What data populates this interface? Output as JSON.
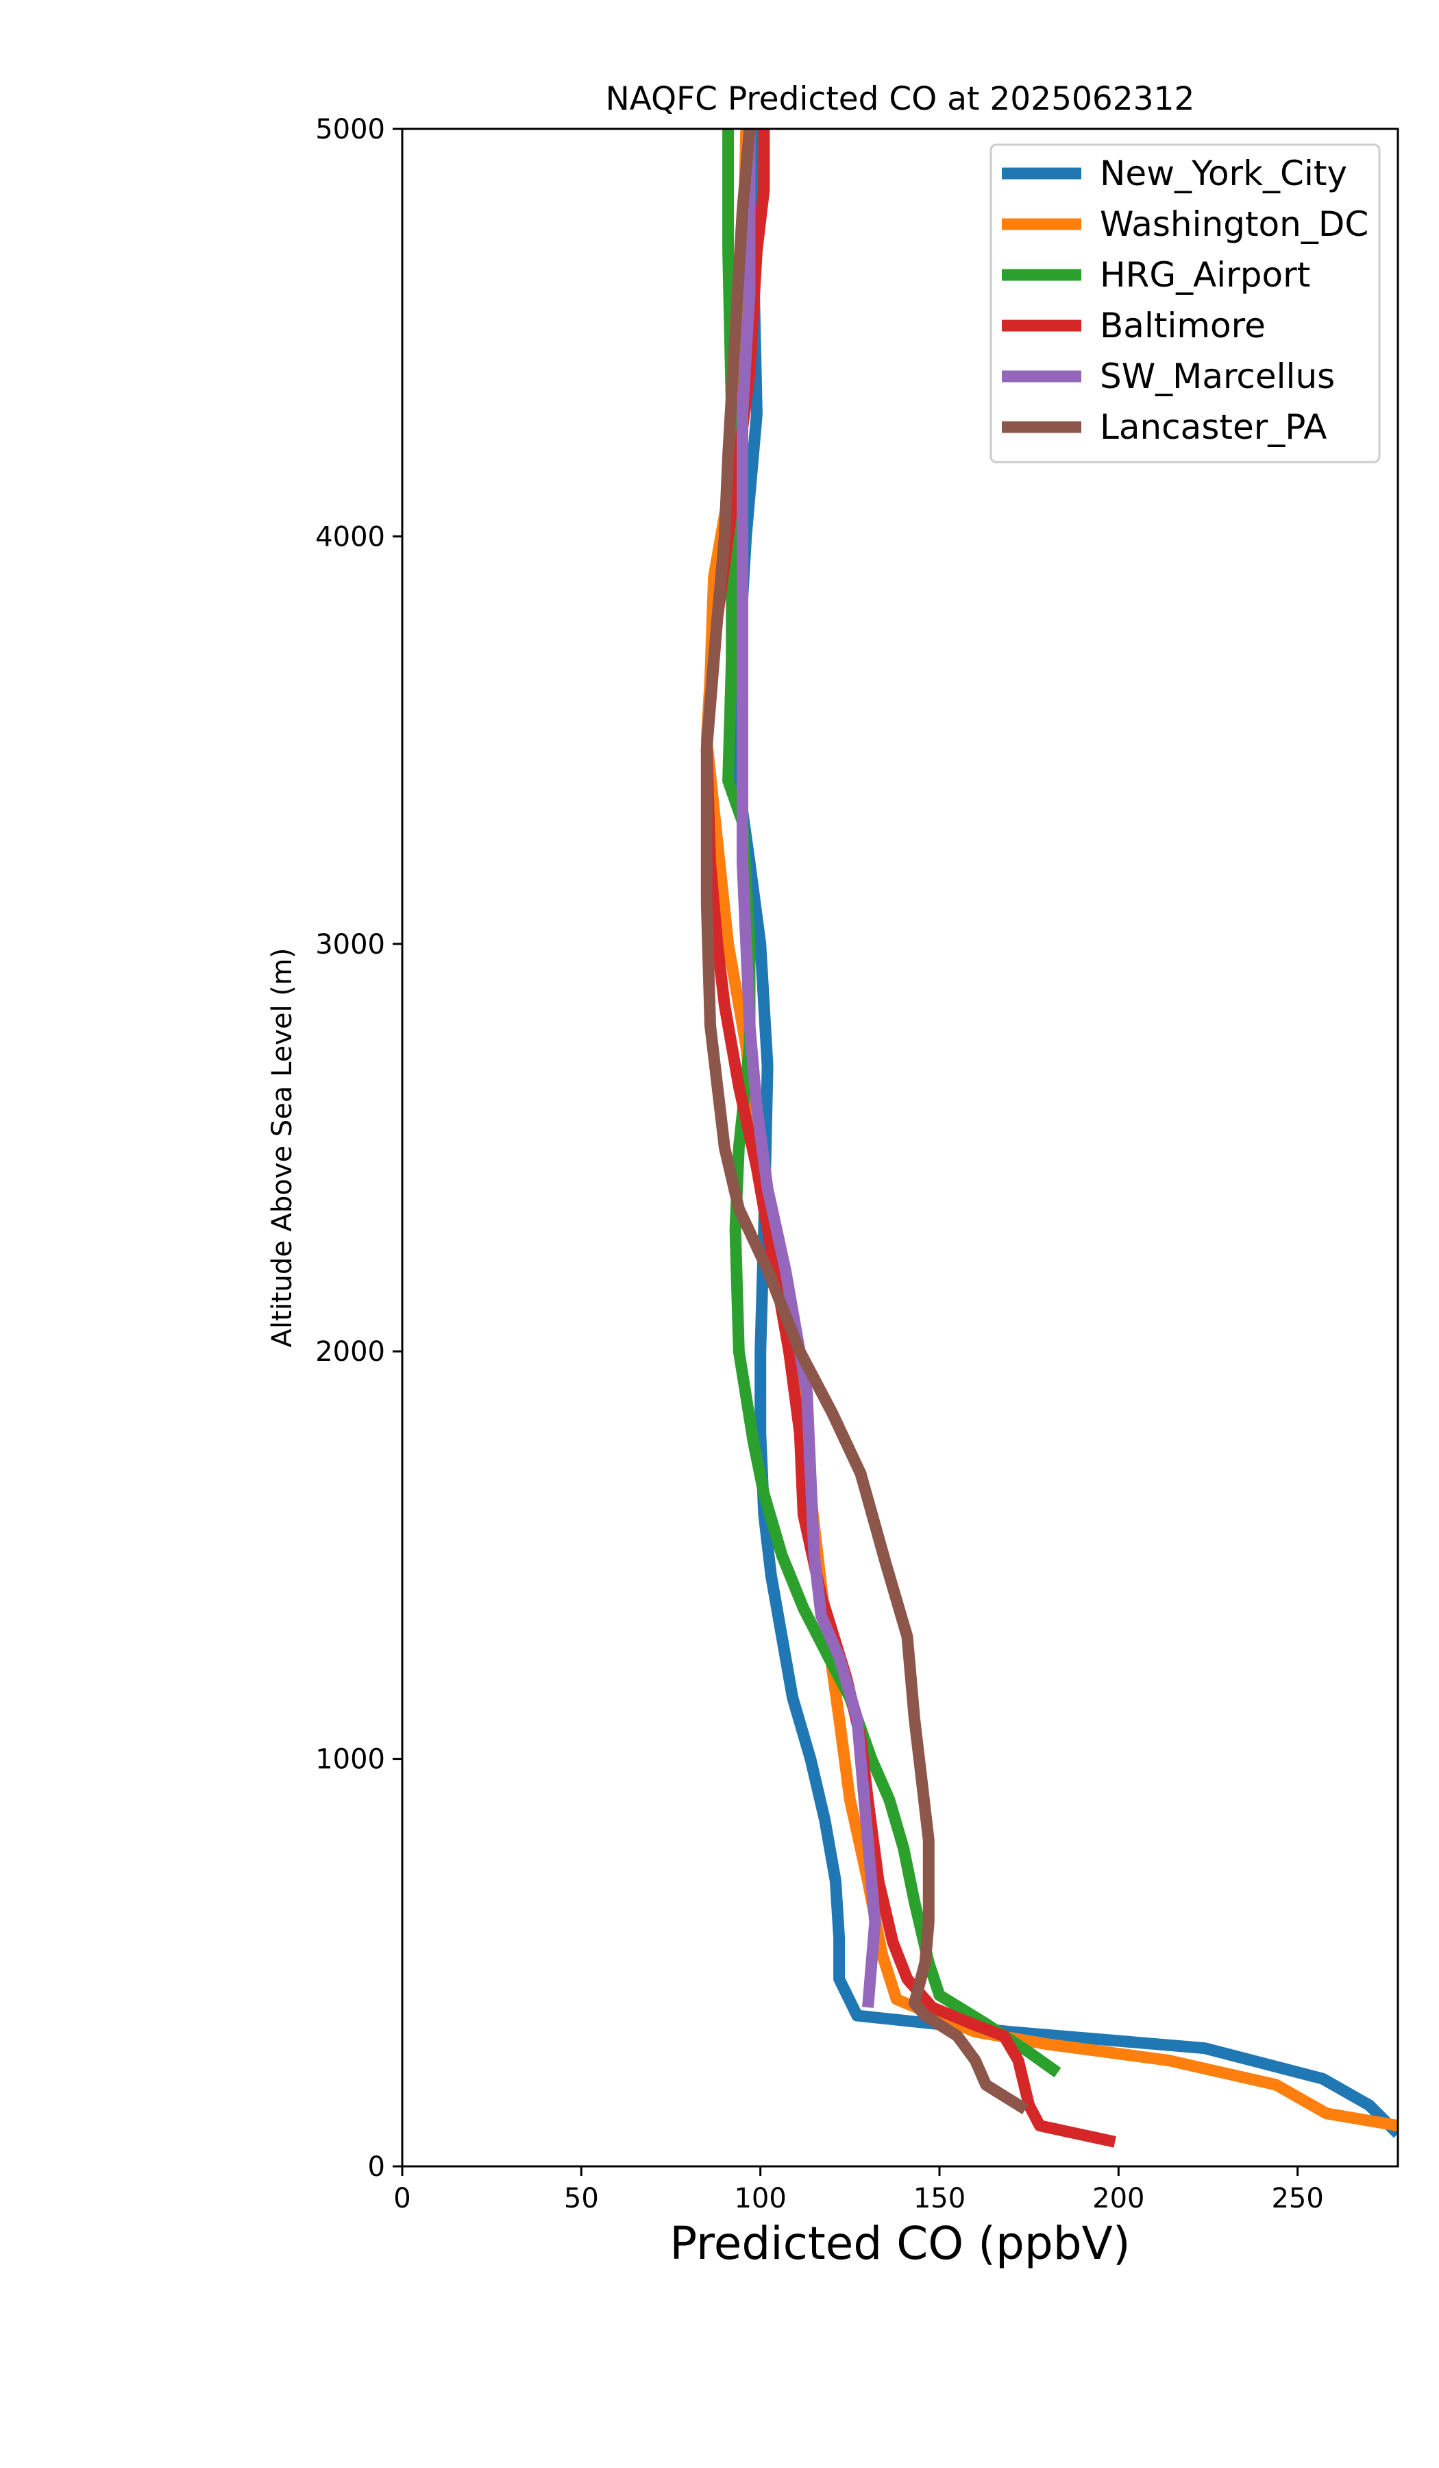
{
  "chart_data": {
    "type": "line",
    "title": "NAQFC Predicted CO at 2025062312",
    "xlabel": "Predicted CO (ppbV)",
    "ylabel": "Altitude Above Sea Level (m)",
    "xlim": [
      0,
      278
    ],
    "ylim": [
      0,
      5000
    ],
    "x_ticks": [
      "0",
      "50",
      "100",
      "150",
      "200",
      "250"
    ],
    "y_ticks": [
      "0",
      "1000",
      "2000",
      "3000",
      "4000",
      "5000"
    ],
    "grid": false,
    "legend_position": "top-right",
    "series": [
      {
        "name": "New_York_City",
        "color": "#1f77b4",
        "points": [
          [
            278,
            80
          ],
          [
            270,
            150
          ],
          [
            257,
            215
          ],
          [
            224,
            290
          ],
          [
            170,
            330
          ],
          [
            127,
            370
          ],
          [
            122,
            460
          ],
          [
            122,
            560
          ],
          [
            121,
            700
          ],
          [
            118,
            850
          ],
          [
            114,
            1000
          ],
          [
            109,
            1150
          ],
          [
            106,
            1300
          ],
          [
            103,
            1450
          ],
          [
            101,
            1600
          ],
          [
            100,
            1800
          ],
          [
            100,
            2000
          ],
          [
            101,
            2300
          ],
          [
            102,
            2700
          ],
          [
            100,
            3000
          ],
          [
            97,
            3200
          ],
          [
            93,
            3450
          ],
          [
            94,
            3700
          ],
          [
            96,
            4000
          ],
          [
            99,
            4300
          ],
          [
            98,
            4700
          ],
          [
            98,
            5000
          ]
        ]
      },
      {
        "name": "Washington_DC",
        "color": "#ff7f0e",
        "points": [
          [
            278,
            100
          ],
          [
            258,
            130
          ],
          [
            244,
            200
          ],
          [
            214,
            260
          ],
          [
            180,
            300
          ],
          [
            160,
            330
          ],
          [
            138,
            410
          ],
          [
            134,
            520
          ],
          [
            130,
            700
          ],
          [
            125,
            900
          ],
          [
            122,
            1100
          ],
          [
            118,
            1350
          ],
          [
            114,
            1650
          ],
          [
            110,
            1900
          ],
          [
            105,
            2150
          ],
          [
            100,
            2450
          ],
          [
            96,
            2750
          ],
          [
            91,
            3000
          ],
          [
            88,
            3250
          ],
          [
            85,
            3500
          ],
          [
            86,
            3650
          ],
          [
            87,
            3900
          ],
          [
            91,
            4100
          ],
          [
            93,
            4300
          ],
          [
            95,
            4600
          ],
          [
            96,
            5000
          ]
        ]
      },
      {
        "name": "HRG_Airport",
        "color": "#2ca02c",
        "points": [
          [
            183,
            230
          ],
          [
            175,
            280
          ],
          [
            163,
            350
          ],
          [
            150,
            420
          ],
          [
            147,
            500
          ],
          [
            143,
            650
          ],
          [
            140,
            780
          ],
          [
            136,
            900
          ],
          [
            131,
            1000
          ],
          [
            125,
            1150
          ],
          [
            119,
            1250
          ],
          [
            112,
            1370
          ],
          [
            106,
            1500
          ],
          [
            101,
            1650
          ],
          [
            98,
            1780
          ],
          [
            94,
            2000
          ],
          [
            93,
            2300
          ],
          [
            94,
            2500
          ],
          [
            97,
            2750
          ],
          [
            97,
            3000
          ],
          [
            95,
            3300
          ],
          [
            91,
            3400
          ],
          [
            92,
            3700
          ],
          [
            92,
            4000
          ],
          [
            92,
            4300
          ],
          [
            91,
            4700
          ],
          [
            91,
            5000
          ]
        ]
      },
      {
        "name": "Baltimore",
        "color": "#d62728",
        "points": [
          [
            199,
            60
          ],
          [
            178,
            100
          ],
          [
            175,
            150
          ],
          [
            172,
            260
          ],
          [
            168,
            320
          ],
          [
            159,
            350
          ],
          [
            148,
            390
          ],
          [
            141,
            460
          ],
          [
            137,
            550
          ],
          [
            133,
            700
          ],
          [
            130,
            900
          ],
          [
            128,
            1050
          ],
          [
            124,
            1200
          ],
          [
            117,
            1400
          ],
          [
            112,
            1600
          ],
          [
            111,
            1800
          ],
          [
            108,
            2000
          ],
          [
            104,
            2200
          ],
          [
            99,
            2450
          ],
          [
            94,
            2650
          ],
          [
            90,
            2850
          ],
          [
            88,
            3000
          ],
          [
            86,
            3200
          ],
          [
            85,
            3480
          ],
          [
            88,
            3800
          ],
          [
            91,
            4000
          ],
          [
            94,
            4200
          ],
          [
            97,
            4400
          ],
          [
            99,
            4700
          ],
          [
            101,
            4850
          ],
          [
            101,
            5000
          ]
        ]
      },
      {
        "name": "SW_Marcellus",
        "color": "#9467bd",
        "points": [
          [
            130,
            390
          ],
          [
            132,
            600
          ],
          [
            130,
            800
          ],
          [
            128,
            1000
          ],
          [
            127,
            1100
          ],
          [
            122,
            1250
          ],
          [
            117,
            1350
          ],
          [
            115,
            1500
          ],
          [
            114,
            1700
          ],
          [
            113,
            1900
          ],
          [
            110,
            2050
          ],
          [
            107,
            2200
          ],
          [
            102,
            2400
          ],
          [
            99,
            2600
          ],
          [
            97,
            2800
          ],
          [
            96,
            3000
          ],
          [
            95,
            3200
          ],
          [
            95,
            3500
          ],
          [
            95,
            3800
          ],
          [
            95,
            4050
          ],
          [
            95,
            4300
          ],
          [
            97,
            4600
          ],
          [
            97,
            5000
          ]
        ]
      },
      {
        "name": "Lancaster_PA",
        "color": "#8c564b",
        "points": [
          [
            174,
            140
          ],
          [
            163,
            200
          ],
          [
            160,
            260
          ],
          [
            155,
            320
          ],
          [
            146,
            370
          ],
          [
            143,
            400
          ],
          [
            146,
            500
          ],
          [
            147,
            600
          ],
          [
            147,
            800
          ],
          [
            145,
            950
          ],
          [
            143,
            1100
          ],
          [
            141,
            1300
          ],
          [
            135,
            1480
          ],
          [
            128,
            1700
          ],
          [
            120,
            1850
          ],
          [
            111,
            2000
          ],
          [
            102,
            2200
          ],
          [
            94,
            2350
          ],
          [
            90,
            2500
          ],
          [
            86,
            2800
          ],
          [
            85,
            3100
          ],
          [
            85,
            3480
          ],
          [
            87,
            3700
          ],
          [
            90,
            4000
          ],
          [
            91,
            4200
          ],
          [
            93,
            4500
          ],
          [
            95,
            4800
          ],
          [
            97,
            5000
          ]
        ]
      }
    ]
  }
}
